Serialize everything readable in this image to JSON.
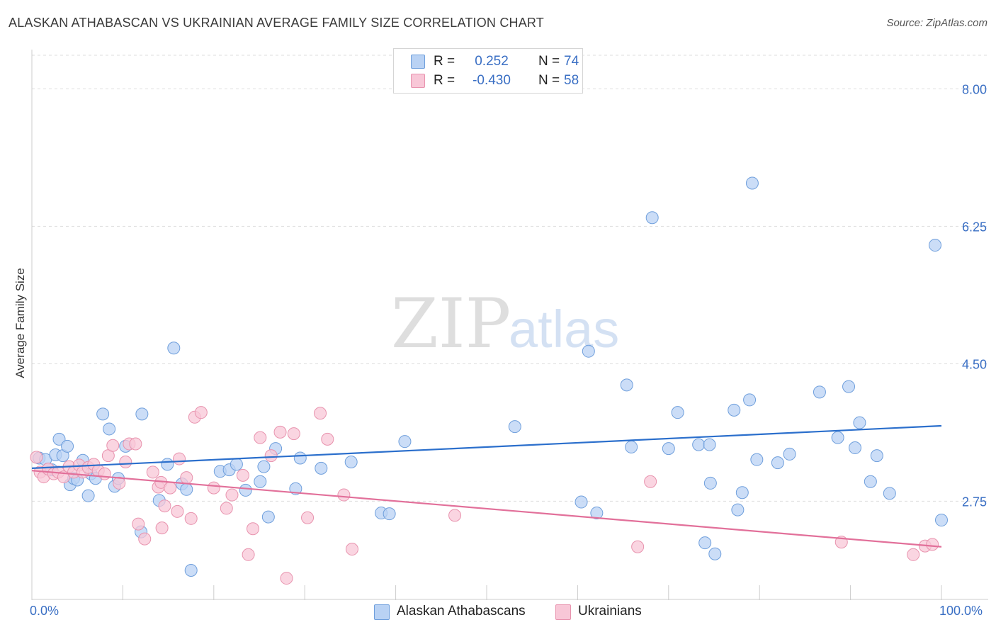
{
  "title": "ALASKAN ATHABASCAN VS UKRAINIAN AVERAGE FAMILY SIZE CORRELATION CHART",
  "source": "Source: ZipAtlas.com",
  "watermark": {
    "zip": "ZIP",
    "atlas": "atlas"
  },
  "legend": {
    "rows": [
      {
        "r_label": "R =",
        "r_value": "0.252",
        "n_label": "N =",
        "n_value": "74"
      },
      {
        "r_label": "R =",
        "r_value": "-0.430",
        "n_label": "N =",
        "n_value": "58"
      }
    ]
  },
  "bottom_legend": [
    "Alaskan Athabascans",
    "Ukrainians"
  ],
  "colors": {
    "blue_fill": "#b9d2f4",
    "blue_stroke": "#6f9fdc",
    "blue_line": "#2b6fcc",
    "pink_fill": "#f8c7d7",
    "pink_stroke": "#e893ae",
    "pink_line": "#e2709a",
    "tick_text": "#3a6fc4",
    "grid": "#dddddd"
  },
  "chart_data": {
    "type": "scatter",
    "title": "ALASKAN ATHABASCAN VS UKRAINIAN AVERAGE FAMILY SIZE CORRELATION CHART",
    "xlabel": "",
    "ylabel": "Average Family Size",
    "xlim": [
      0,
      100
    ],
    "ylim": [
      1.5,
      8.5
    ],
    "x_tick_labels": [
      "0.0%",
      "100.0%"
    ],
    "y_ticks": [
      2.75,
      4.5,
      6.25,
      8.0
    ],
    "y_tick_labels": [
      "2.75",
      "4.50",
      "6.25",
      "8.00"
    ],
    "grid": true,
    "legend_position": "top-center",
    "series": [
      {
        "name": "Alaskan Athabascans",
        "color": "#b9d2f4",
        "r": 0.252,
        "n": 74,
        "trend": {
          "x": [
            0,
            100
          ],
          "y": [
            3.17,
            3.71
          ]
        },
        "points": [
          [
            0.8,
            3.3
          ],
          [
            1.5,
            3.28
          ],
          [
            2.2,
            3.15
          ],
          [
            1.8,
            3.16
          ],
          [
            2.6,
            3.34
          ],
          [
            3.0,
            3.54
          ],
          [
            3.4,
            3.33
          ],
          [
            3.9,
            3.45
          ],
          [
            4.2,
            2.96
          ],
          [
            4.6,
            3.04
          ],
          [
            5.0,
            3.02
          ],
          [
            5.6,
            3.27
          ],
          [
            6.2,
            2.82
          ],
          [
            6.5,
            3.1
          ],
          [
            7.0,
            3.04
          ],
          [
            7.8,
            3.86
          ],
          [
            8.5,
            3.67
          ],
          [
            9.1,
            2.94
          ],
          [
            9.5,
            3.04
          ],
          [
            10.3,
            3.45
          ],
          [
            12.1,
            3.86
          ],
          [
            12.0,
            2.36
          ],
          [
            14.0,
            2.76
          ],
          [
            14.9,
            3.22
          ],
          [
            15.6,
            4.7
          ],
          [
            16.5,
            2.97
          ],
          [
            17.0,
            2.9
          ],
          [
            17.5,
            1.87
          ],
          [
            20.7,
            3.13
          ],
          [
            21.7,
            3.15
          ],
          [
            22.5,
            3.22
          ],
          [
            23.5,
            2.89
          ],
          [
            25.1,
            3.0
          ],
          [
            25.5,
            3.19
          ],
          [
            26.0,
            2.55
          ],
          [
            26.8,
            3.42
          ],
          [
            29.0,
            2.91
          ],
          [
            29.5,
            3.3
          ],
          [
            31.8,
            3.17
          ],
          [
            35.1,
            3.25
          ],
          [
            38.4,
            2.6
          ],
          [
            39.3,
            2.59
          ],
          [
            41.0,
            3.51
          ],
          [
            53.1,
            3.7
          ],
          [
            60.4,
            2.74
          ],
          [
            61.2,
            4.66
          ],
          [
            62.1,
            2.6
          ],
          [
            65.4,
            4.23
          ],
          [
            65.9,
            3.44
          ],
          [
            68.2,
            6.36
          ],
          [
            70.0,
            3.42
          ],
          [
            71.0,
            3.88
          ],
          [
            73.3,
            3.47
          ],
          [
            74.5,
            3.47
          ],
          [
            74.0,
            2.22
          ],
          [
            74.6,
            2.98
          ],
          [
            75.1,
            2.08
          ],
          [
            77.2,
            3.91
          ],
          [
            77.6,
            2.64
          ],
          [
            78.1,
            2.86
          ],
          [
            78.9,
            4.04
          ],
          [
            79.7,
            3.28
          ],
          [
            79.2,
            6.8
          ],
          [
            82.0,
            3.24
          ],
          [
            83.3,
            3.35
          ],
          [
            86.6,
            4.14
          ],
          [
            88.6,
            3.56
          ],
          [
            90.5,
            3.43
          ],
          [
            89.8,
            4.21
          ],
          [
            91.0,
            3.75
          ],
          [
            92.2,
            3.0
          ],
          [
            92.9,
            3.33
          ],
          [
            94.3,
            2.85
          ],
          [
            99.3,
            6.01
          ],
          [
            100.0,
            2.51
          ]
        ]
      },
      {
        "name": "Ukrainians",
        "color": "#f8c7d7",
        "r": -0.43,
        "n": 58,
        "trend": {
          "x": [
            0,
            100
          ],
          "y": [
            3.14,
            2.17
          ]
        },
        "points": [
          [
            0.5,
            3.31
          ],
          [
            0.9,
            3.12
          ],
          [
            1.3,
            3.06
          ],
          [
            1.8,
            3.16
          ],
          [
            2.4,
            3.1
          ],
          [
            2.9,
            3.12
          ],
          [
            3.5,
            3.06
          ],
          [
            4.1,
            3.19
          ],
          [
            4.6,
            3.12
          ],
          [
            5.2,
            3.21
          ],
          [
            5.6,
            3.12
          ],
          [
            6.2,
            3.18
          ],
          [
            6.8,
            3.22
          ],
          [
            7.3,
            3.14
          ],
          [
            8.0,
            3.1
          ],
          [
            8.4,
            3.33
          ],
          [
            8.9,
            3.46
          ],
          [
            9.6,
            2.98
          ],
          [
            10.3,
            3.25
          ],
          [
            10.7,
            3.48
          ],
          [
            11.4,
            3.48
          ],
          [
            11.7,
            2.46
          ],
          [
            12.4,
            2.27
          ],
          [
            13.3,
            3.12
          ],
          [
            13.9,
            2.93
          ],
          [
            14.2,
            2.99
          ],
          [
            14.3,
            2.41
          ],
          [
            14.6,
            2.69
          ],
          [
            15.2,
            2.92
          ],
          [
            16.0,
            2.62
          ],
          [
            16.2,
            3.29
          ],
          [
            17.0,
            3.05
          ],
          [
            17.5,
            2.53
          ],
          [
            17.9,
            3.82
          ],
          [
            18.6,
            3.88
          ],
          [
            20.0,
            2.92
          ],
          [
            21.4,
            2.66
          ],
          [
            22.0,
            2.83
          ],
          [
            23.2,
            3.08
          ],
          [
            23.8,
            2.07
          ],
          [
            24.3,
            2.4
          ],
          [
            25.1,
            3.56
          ],
          [
            26.3,
            3.33
          ],
          [
            27.3,
            3.63
          ],
          [
            28.0,
            1.77
          ],
          [
            28.8,
            3.61
          ],
          [
            30.3,
            2.54
          ],
          [
            31.7,
            3.87
          ],
          [
            32.5,
            3.54
          ],
          [
            34.3,
            2.83
          ],
          [
            35.2,
            2.14
          ],
          [
            46.5,
            2.57
          ],
          [
            66.6,
            2.17
          ],
          [
            68.0,
            3.0
          ],
          [
            89.0,
            2.23
          ],
          [
            96.9,
            2.07
          ],
          [
            98.2,
            2.18
          ],
          [
            99.0,
            2.2
          ]
        ]
      }
    ]
  }
}
